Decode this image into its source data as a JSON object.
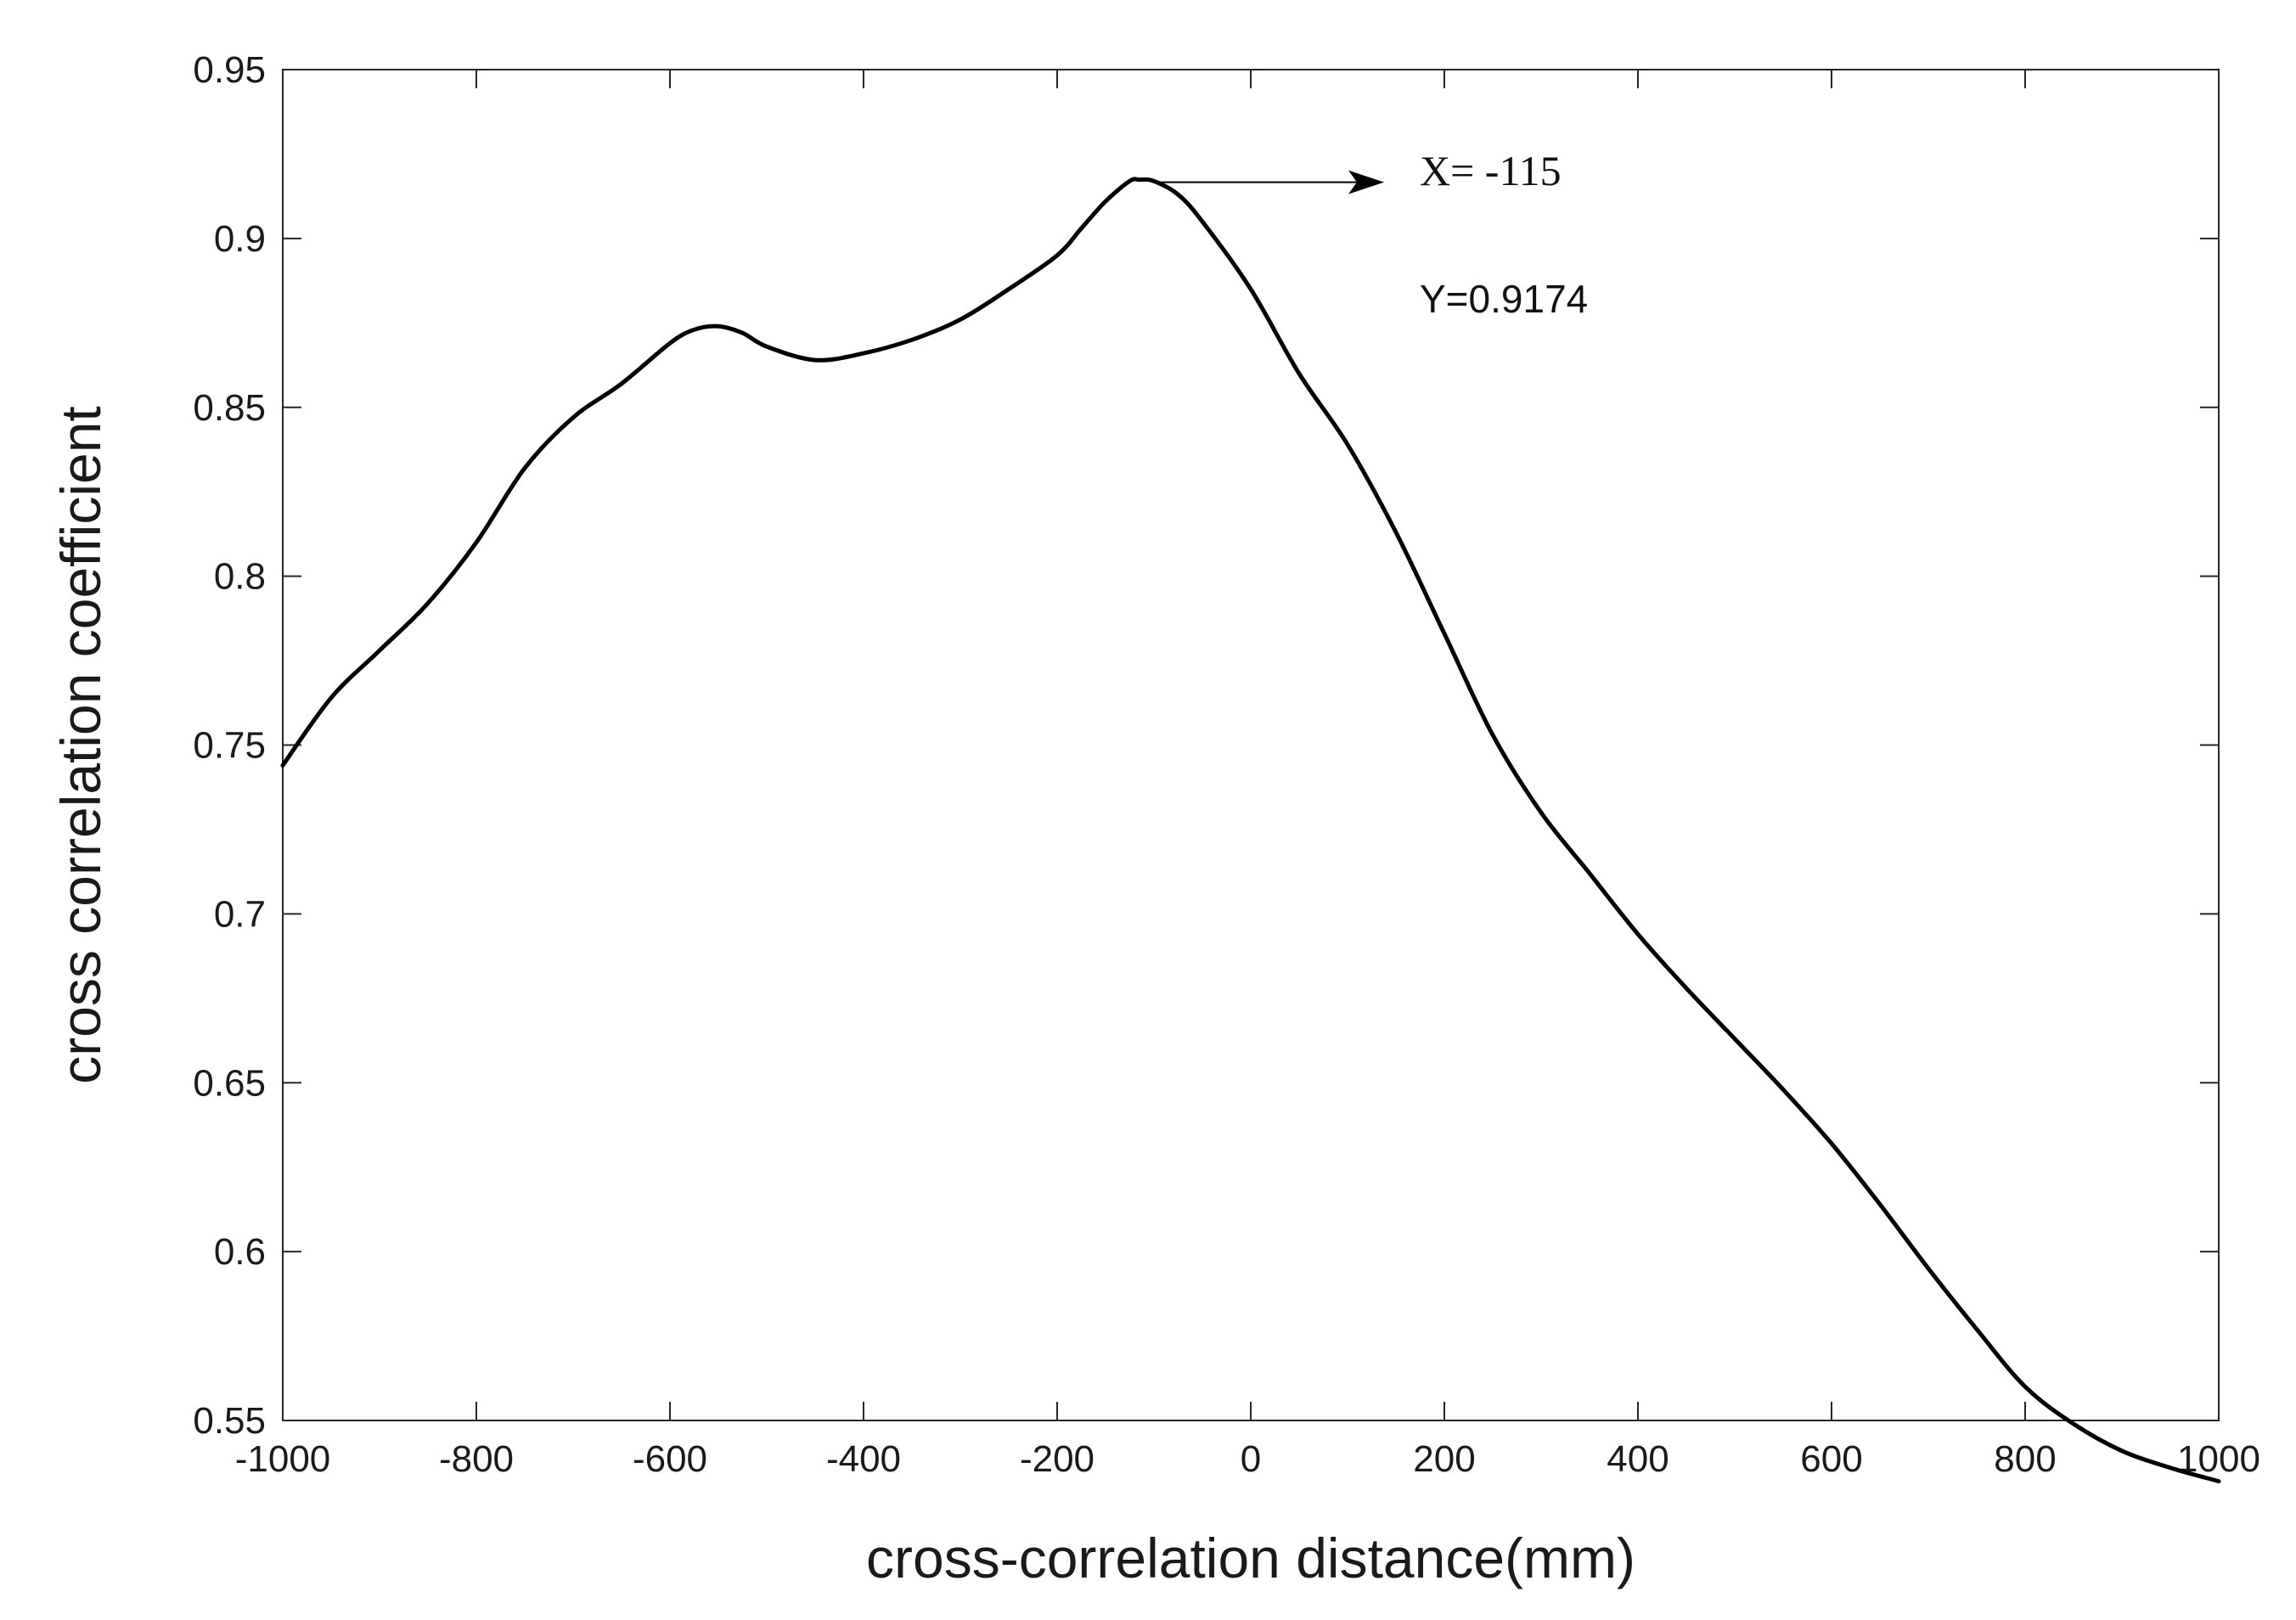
{
  "chart_data": {
    "type": "line",
    "xlabel": "cross-correlation distance(mm)",
    "ylabel": "cross correlation coefficient",
    "xlim": [
      -1000,
      1000
    ],
    "ylim": [
      0.55,
      0.95
    ],
    "x_ticks": [
      "-1000",
      "-800",
      "-600",
      "-400",
      "-200",
      "0",
      "200",
      "400",
      "600",
      "800",
      "1000"
    ],
    "y_ticks": [
      "0.55",
      "0.6",
      "0.65",
      "0.7",
      "0.75",
      "0.8",
      "0.85",
      "0.9",
      "0.95"
    ],
    "grid": false,
    "colors": {
      "line": "#000000",
      "axis": "#262626"
    },
    "series": [
      {
        "x": [
          -1000,
          -950,
          -900,
          -850,
          -800,
          -750,
          -700,
          -650,
          -600,
          -575,
          -550,
          -525,
          -500,
          -450,
          -400,
          -350,
          -300,
          -250,
          -200,
          -175,
          -150,
          -125,
          -115,
          -100,
          -75,
          -50,
          0,
          50,
          100,
          150,
          200,
          250,
          300,
          350,
          400,
          450,
          500,
          550,
          600,
          650,
          700,
          750,
          800,
          850,
          900,
          950,
          1000
        ],
        "y": [
          0.744,
          0.764,
          0.778,
          0.792,
          0.81,
          0.832,
          0.847,
          0.857,
          0.869,
          0.873,
          0.874,
          0.872,
          0.868,
          0.864,
          0.866,
          0.87,
          0.876,
          0.885,
          0.895,
          0.903,
          0.911,
          0.917,
          0.9174,
          0.917,
          0.913,
          0.905,
          0.885,
          0.86,
          0.839,
          0.813,
          0.783,
          0.753,
          0.73,
          0.712,
          0.694,
          0.678,
          0.663,
          0.648,
          0.632,
          0.614,
          0.595,
          0.577,
          0.56,
          0.549,
          0.541,
          0.536,
          0.532
        ]
      }
    ],
    "annotation": {
      "point_x": -115,
      "point_y": 0.9174,
      "x_text": "X= -115",
      "y_text": "Y=0.9174"
    }
  }
}
